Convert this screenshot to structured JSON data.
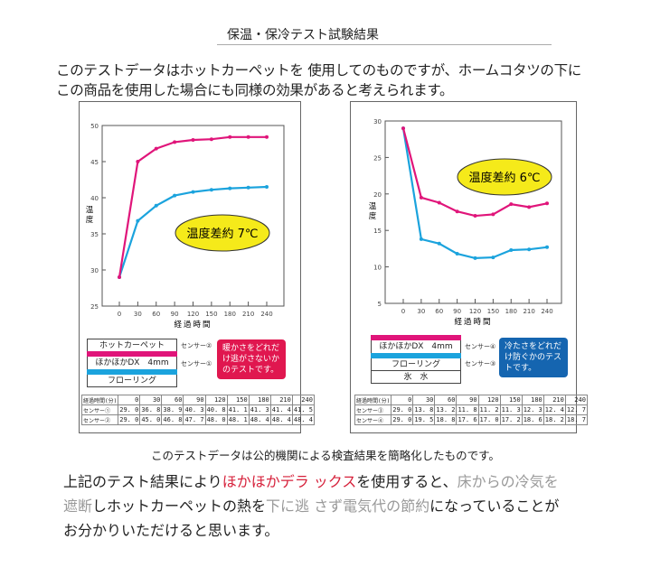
{
  "title": "保温・保冷テスト試験結果",
  "intro": [
    "このテストデータはホットカーペットを 使用してのものですが、ホームコタツの下に",
    "この商品を使用した場合にも同様の効果があると考えられます。"
  ],
  "chart_data": [
    {
      "type": "line",
      "ylabel": "温度",
      "xlabel": "経過時間",
      "x": [
        0,
        30,
        60,
        90,
        120,
        150,
        180,
        210,
        240
      ],
      "ylim": [
        25,
        50
      ],
      "yticks": [
        25,
        30,
        35,
        40,
        45,
        50
      ],
      "series": [
        {
          "name": "センサー①",
          "color": "#1ba3dd",
          "values": [
            29.0,
            36.8,
            38.9,
            40.3,
            40.8,
            41.1,
            41.3,
            41.4,
            41.5
          ]
        },
        {
          "name": "センサー②",
          "color": "#e0157a",
          "values": [
            29.0,
            45.0,
            46.8,
            47.7,
            48.0,
            48.1,
            48.4,
            48.4,
            48.4
          ]
        }
      ],
      "annotation": "温度差約 7℃"
    },
    {
      "type": "line",
      "ylabel": "温度",
      "xlabel": "経過時間",
      "x": [
        0,
        30,
        60,
        90,
        120,
        150,
        180,
        210,
        240
      ],
      "ylim": [
        5,
        30
      ],
      "yticks": [
        5,
        10,
        15,
        20,
        25,
        30
      ],
      "series": [
        {
          "name": "センサー③",
          "color": "#1ba3dd",
          "values": [
            29.0,
            13.8,
            13.2,
            11.8,
            11.2,
            11.3,
            12.3,
            12.4,
            12.7
          ]
        },
        {
          "name": "センサー④",
          "color": "#e0157a",
          "values": [
            29.0,
            19.5,
            18.8,
            17.6,
            17.0,
            17.2,
            18.6,
            18.2,
            18.7
          ]
        }
      ],
      "annotation": "温度差約 6℃"
    }
  ],
  "left": {
    "layers": [
      "ホットカーペット",
      "ほかほかDX　4mm",
      "フローリング"
    ],
    "sensors": [
      "センサー②",
      "センサー①"
    ],
    "note": "暖かさをどれだけ逃がさないかのテストです。",
    "note_color": "#e0174f",
    "table": {
      "header": [
        "経過時間(分)",
        "0",
        "30",
        "60",
        "90",
        "120",
        "150",
        "180",
        "210",
        "240"
      ],
      "rows": [
        [
          "センサー①",
          "29. 0",
          "36. 8",
          "38. 9",
          "40. 3",
          "40. 8",
          "41. 1",
          "41. 3",
          "41. 4",
          "41. 5"
        ],
        [
          "センサー②",
          "29. 0",
          "45. 0",
          "46. 8",
          "47. 7",
          "48. 0",
          "48. 1",
          "48. 4",
          "48. 4",
          "48. 4"
        ]
      ]
    }
  },
  "right": {
    "layers": [
      "ほかほかDX　4mm",
      "フローリング",
      "氷　水"
    ],
    "sensors": [
      "センサー④",
      "センサー③"
    ],
    "note": "冷たさをどれだけ防ぐかのテストです。",
    "note_color": "#1565b0",
    "table": {
      "header": [
        "経過時間(分)",
        "0",
        "30",
        "60",
        "90",
        "120",
        "150",
        "180",
        "210",
        "240"
      ],
      "rows": [
        [
          "センサー③",
          "29. 0",
          "13. 8",
          "13. 2",
          "11. 8",
          "11. 2",
          "11. 3",
          "12. 3",
          "12. 4",
          "12. 7"
        ],
        [
          "センサー④",
          "29. 0",
          "19. 5",
          "18. 8",
          "17. 6",
          "17. 0",
          "17. 2",
          "18. 6",
          "18. 2",
          "18. 7"
        ]
      ]
    }
  },
  "caption": "このテストデータは公的機関による検査結果を簡略化したものです。",
  "bottom": {
    "l1a": "上記のテスト結果により",
    "l1b": "ほかほかデラ ックス",
    "l1c": "を使用すると、",
    "l1d": "床からの冷気を",
    "l2a": "遮断",
    "l2b": "しホットカーペットの熱を",
    "l2c": "下に逃",
    "l2d": "さず電気代の節約",
    "l2e": "になっていることが",
    "l3": "お分かりいただけると思います。"
  }
}
